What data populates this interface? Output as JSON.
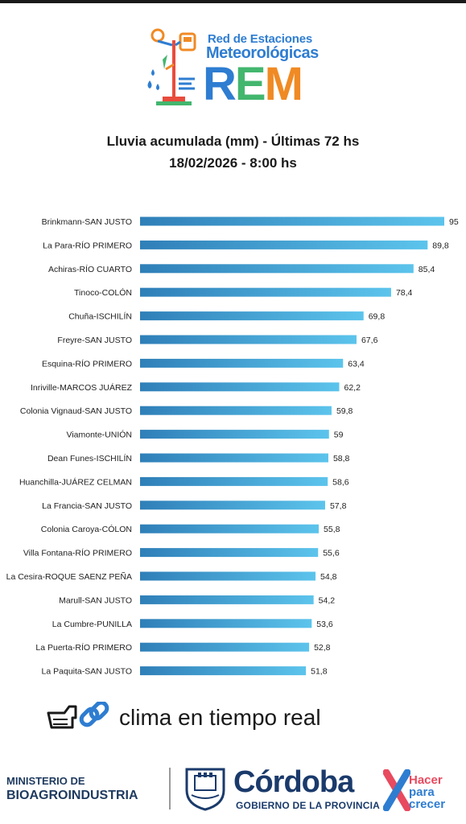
{
  "header": {
    "logo_line1": "Red de Estaciones",
    "logo_line2": "Meteorológicas",
    "logo_acronym": "REM",
    "colors": {
      "blue": "#2e7dd1",
      "green": "#43b66e",
      "orange": "#f08a24",
      "red": "#e94b3c"
    }
  },
  "chart_data": {
    "type": "bar",
    "orientation": "horizontal",
    "title": "Lluvia acumulada (mm) - Últimas 72 hs",
    "subtitle": "18/02/2026 - 8:00 hs",
    "categories": [
      "Brinkmann-SAN JUSTO",
      "La Para-RÍO PRIMERO",
      "Achiras-RÍO CUARTO",
      "Tinoco-COLÓN",
      "Chuña-ISCHILÍN",
      "Freyre-SAN JUSTO",
      "Esquina-RÍO PRIMERO",
      "Inriville-MARCOS JUÁREZ",
      "Colonia Vignaud-SAN JUSTO",
      "Viamonte-UNIÓN",
      "Dean Funes-ISCHILÍN",
      "Huanchilla-JUÁREZ CELMAN",
      "La Francia-SAN JUSTO",
      "Colonia Caroya-CÓLON",
      "Villa Fontana-RÍO PRIMERO",
      "La Cesira-ROQUE SAENZ PEÑA",
      "Marull-SAN JUSTO",
      "La Cumbre-PUNILLA",
      "La Puerta-RÍO PRIMERO",
      "La Paquita-SAN JUSTO"
    ],
    "values": [
      95,
      89.8,
      85.4,
      78.4,
      69.8,
      67.6,
      63.4,
      62.2,
      59.8,
      59,
      58.8,
      58.6,
      57.8,
      55.8,
      55.6,
      54.8,
      54.2,
      53.6,
      52.8,
      51.8
    ],
    "value_labels": [
      "95",
      "89,8",
      "85,4",
      "78,4",
      "69,8",
      "67,6",
      "63,4",
      "62,2",
      "59,8",
      "59",
      "58,8",
      "58,6",
      "57,8",
      "55,8",
      "55,6",
      "54,8",
      "54,2",
      "53,6",
      "52,8",
      "51,8"
    ],
    "xlim": [
      0,
      95
    ],
    "bar_color_start": "#2f7fb8",
    "bar_color_end": "#5cc4ec",
    "grid": false,
    "legend": "none"
  },
  "footer": {
    "link_text": "clima en tiempo real",
    "ministry_line1": "MINISTERIO DE",
    "ministry_line2": "BIOAGROINDUSTRIA",
    "province_name": "Córdoba",
    "province_sub": "GOBIERNO DE LA PROVINCIA",
    "slogan_line1": "Hacer",
    "slogan_line2": "para",
    "slogan_line3": "crecer"
  }
}
